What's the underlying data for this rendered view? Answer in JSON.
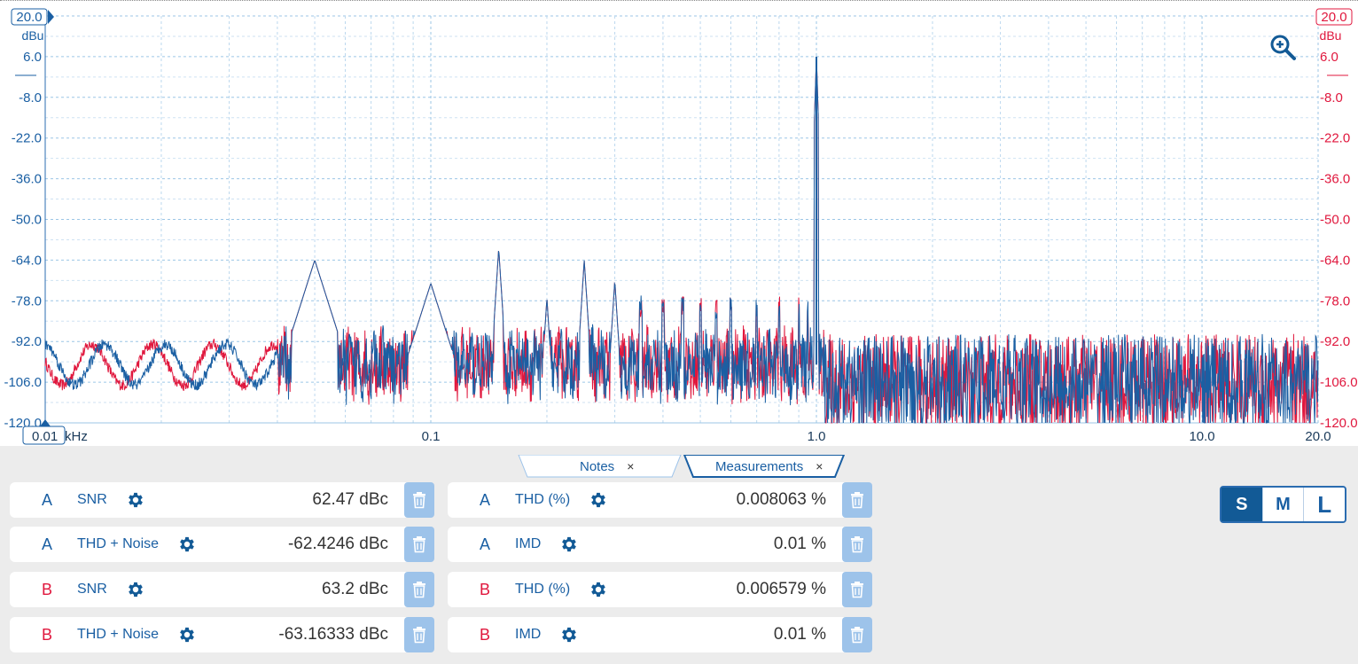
{
  "chart_data": {
    "type": "line",
    "xscale": "log",
    "x_unit": "kHz",
    "y_unit_left": "dBu",
    "y_unit_right": "dBu",
    "xlim": [
      0.01,
      20.0
    ],
    "ylim": [
      -120.0,
      20.0
    ],
    "x_ticks": [
      "0.1",
      "1.0",
      "10.0",
      "20.0"
    ],
    "x_start_label": "0.01",
    "y_ticks_left": [
      "20.0",
      "6.0",
      "-8.0",
      "-22.0",
      "-36.0",
      "-50.0",
      "-64.0",
      "-78.0",
      "-92.0",
      "-106.0",
      "-120.0"
    ],
    "y_ticks_right": [
      "20.0",
      "6.0",
      "-8.0",
      "-22.0",
      "-36.0",
      "-50.0",
      "-64.0",
      "-78.0",
      "-92.0",
      "-106.0",
      "-120.0"
    ],
    "grid": true,
    "series": [
      {
        "color": "#1a5fa3"
      },
      {
        "color": "#e0173d"
      }
    ],
    "peaks": [
      {
        "x": 0.05,
        "y": -64
      },
      {
        "x": 0.1,
        "y": -72
      },
      {
        "x": 0.15,
        "y": -60
      },
      {
        "x": 0.2,
        "y": -77
      },
      {
        "x": 0.25,
        "y": -64
      },
      {
        "x": 0.3,
        "y": -71
      },
      {
        "x": 1.0,
        "y": 6
      }
    ]
  },
  "colors": {
    "channel_a": "#1a5fa3",
    "channel_b": "#e0173d"
  },
  "icons": {
    "zoom": "zoom-in-icon",
    "gear": "gear-icon",
    "trash": "trash-icon"
  },
  "tabs": [
    {
      "label": "Notes"
    },
    {
      "label": "Measurements"
    }
  ],
  "tab_close_glyph": "×",
  "measurements_left": [
    {
      "channel": "A",
      "name": "SNR",
      "value": "62.47 dBc"
    },
    {
      "channel": "A",
      "name": "THD + Noise",
      "value": "-62.4246 dBc"
    },
    {
      "channel": "B",
      "name": "SNR",
      "value": "63.2 dBc"
    },
    {
      "channel": "B",
      "name": "THD + Noise",
      "value": "-63.16333 dBc"
    }
  ],
  "measurements_right": [
    {
      "channel": "A",
      "name": "THD (%)",
      "value": "0.008063 %"
    },
    {
      "channel": "A",
      "name": "IMD",
      "value": "0.01 %"
    },
    {
      "channel": "B",
      "name": "THD (%)",
      "value": "0.006579 %"
    },
    {
      "channel": "B",
      "name": "IMD",
      "value": "0.01 %"
    }
  ],
  "size_buttons": [
    "S",
    "M",
    "L"
  ],
  "size_selected": "S"
}
